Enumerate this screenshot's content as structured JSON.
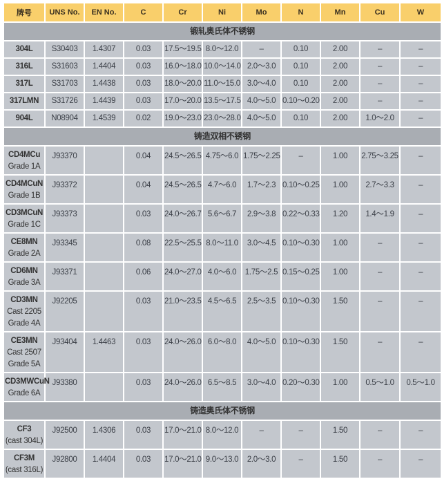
{
  "columns": [
    "牌号",
    "UNS No.",
    "EN No.",
    "C",
    "Cr",
    "Ni",
    "Mo",
    "N",
    "Mn",
    "Cu",
    "W"
  ],
  "sections": [
    {
      "title": "锻轧奥氏体不锈钢",
      "rows": [
        {
          "grade": [
            "304L"
          ],
          "values": [
            "S30403",
            "1.4307",
            "0.03",
            "17.5～19.5",
            "8.0～12.0",
            "–",
            "0.10",
            "2.00",
            "–",
            "–"
          ]
        },
        {
          "grade": [
            "316L"
          ],
          "values": [
            "S31603",
            "1.4404",
            "0.03",
            "16.0～18.0",
            "10.0～14.0",
            "2.0～3.0",
            "0.10",
            "2.00",
            "–",
            "–"
          ]
        },
        {
          "grade": [
            "317L"
          ],
          "values": [
            "S31703",
            "1.4438",
            "0.03",
            "18.0～20.0",
            "11.0～15.0",
            "3.0～4.0",
            "0.10",
            "2.00",
            "–",
            "–"
          ]
        },
        {
          "grade": [
            "317LMN"
          ],
          "values": [
            "S31726",
            "1.4439",
            "0.03",
            "17.0～20.0",
            "13.5～17.5",
            "4.0～5.0",
            "0.10～0.20",
            "2.00",
            "–",
            "–"
          ]
        },
        {
          "grade": [
            "904L"
          ],
          "values": [
            "N08904",
            "1.4539",
            "0.02",
            "19.0～23.0",
            "23.0～28.0",
            "4.0～5.0",
            "0.10",
            "2.00",
            "1.0～2.0",
            "–"
          ]
        }
      ]
    },
    {
      "title": "铸造双相不锈钢",
      "rows": [
        {
          "grade": [
            "CD4MCu",
            "Grade 1A"
          ],
          "values": [
            "J93370",
            "",
            "0.04",
            "24.5～26.5",
            "4.75～6.0",
            "1.75～2.25",
            "–",
            "1.00",
            "2.75～3.25",
            "–"
          ]
        },
        {
          "grade": [
            "CD4MCuN",
            "Grade 1B"
          ],
          "values": [
            "J93372",
            "",
            "0.04",
            "24.5～26.5",
            "4.7～6.0",
            "1.7～2.3",
            "0.10～0.25",
            "1.00",
            "2.7～3.3",
            "–"
          ]
        },
        {
          "grade": [
            "CD3MCuN",
            "Grade 1C"
          ],
          "values": [
            "J93373",
            "",
            "0.03",
            "24.0～26.7",
            "5.6～6.7",
            "2.9～3.8",
            "0.22～0.33",
            "1.20",
            "1.4～1.9",
            "–"
          ]
        },
        {
          "grade": [
            "CE8MN",
            "Grade 2A"
          ],
          "values": [
            "J93345",
            "",
            "0.08",
            "22.5～25.5",
            "8.0～11.0",
            "3.0～4.5",
            "0.10～0.30",
            "1.00",
            "–",
            "–"
          ]
        },
        {
          "grade": [
            "CD6MN",
            "Grade 3A"
          ],
          "values": [
            "J93371",
            "",
            "0.06",
            "24.0～27.0",
            "4.0～6.0",
            "1.75～2.5",
            "0.15～0.25",
            "1.00",
            "–",
            "–"
          ]
        },
        {
          "grade": [
            "CD3MN",
            "Cast 2205",
            "Grade 4A"
          ],
          "values": [
            "J92205",
            "",
            "0.03",
            "21.0～23.5",
            "4.5～6.5",
            "2.5～3.5",
            "0.10～0.30",
            "1.50",
            "–",
            "–"
          ]
        },
        {
          "grade": [
            "CE3MN",
            "Cast 2507",
            "Grade 5A"
          ],
          "values": [
            "J93404",
            "1.4463",
            "0.03",
            "24.0～26.0",
            "6.0～8.0",
            "4.0～5.0",
            "0.10～0.30",
            "1.50",
            "–",
            "–"
          ]
        },
        {
          "grade": [
            "CD3MWCuN",
            "Grade 6A"
          ],
          "values": [
            "J93380",
            "",
            "0.03",
            "24.0～26.0",
            "6.5～8.5",
            "3.0～4.0",
            "0.20～0.30",
            "1.00",
            "0.5～1.0",
            "0.5～1.0"
          ]
        }
      ]
    },
    {
      "title": "铸造奥氏体不锈钢",
      "rows": [
        {
          "grade": [
            "CF3",
            "(cast 304L)"
          ],
          "values": [
            "J92500",
            "1.4306",
            "0.03",
            "17.0～21.0",
            "8.0～12.0",
            "–",
            "–",
            "1.50",
            "–",
            "–"
          ]
        },
        {
          "grade": [
            "CF3M",
            "(cast 316L)"
          ],
          "values": [
            "J92800",
            "1.4404",
            "0.03",
            "17.0～21.0",
            "9.0～13.0",
            "2.0～3.0",
            "–",
            "1.50",
            "–",
            "–"
          ]
        }
      ]
    }
  ]
}
